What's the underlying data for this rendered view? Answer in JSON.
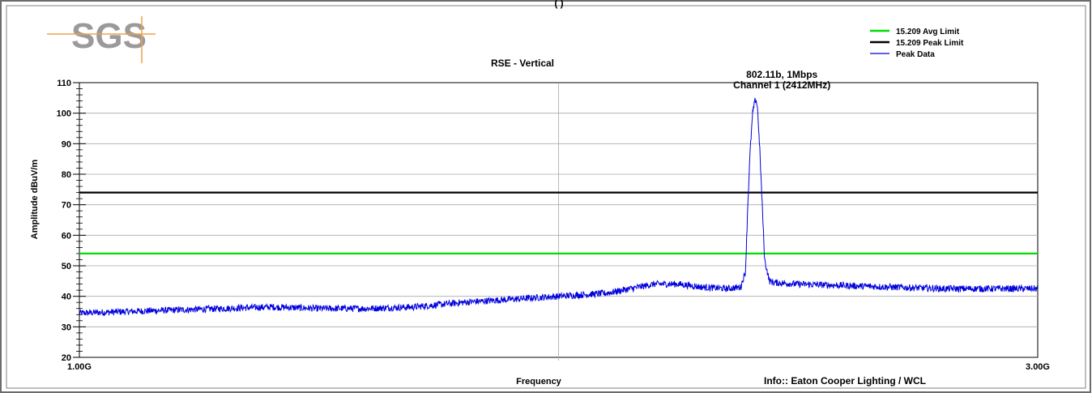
{
  "header_fragment": "(          )",
  "logo_text": "SGS",
  "footer": {
    "info": "Info:: Eaton Cooper Lighting / WCL"
  },
  "colors": {
    "avg_limit": "#00dd00",
    "peak_limit": "#000000",
    "peak_data": "#0000dd",
    "logo_text": "#9a9a9a",
    "logo_line": "#f0a050"
  },
  "chart_data": {
    "type": "line",
    "title": "RSE - Vertical",
    "xlabel": "Frequency",
    "ylabel": "Amplitude dBuV/m",
    "x_unit": "GHz",
    "xlim": [
      1.0,
      3.0
    ],
    "ylim": [
      20,
      110
    ],
    "y_ticks": [
      20,
      30,
      40,
      50,
      60,
      70,
      80,
      90,
      100,
      110
    ],
    "x_tick_labels": [
      "1.00G",
      "3.00G"
    ],
    "grid": true,
    "legend_position": "top-right",
    "annotation": {
      "lines": [
        "802.11b, 1Mbps",
        "Channel 1 (2412MHz)"
      ],
      "x": 2.412
    },
    "series": [
      {
        "name": "15.209 Avg Limit",
        "kind": "limit",
        "x": [
          1.0,
          3.0
        ],
        "values": [
          54,
          54
        ]
      },
      {
        "name": "15.209 Peak Limit",
        "kind": "limit",
        "x": [
          1.0,
          3.0
        ],
        "values": [
          74,
          74
        ]
      },
      {
        "name": "Peak Data",
        "kind": "trace",
        "x": [
          1.0,
          1.1,
          1.2,
          1.3,
          1.4,
          1.5,
          1.6,
          1.7,
          1.8,
          1.9,
          2.0,
          2.1,
          2.15,
          2.2,
          2.25,
          2.3,
          2.35,
          2.38,
          2.39,
          2.395,
          2.4,
          2.405,
          2.41,
          2.412,
          2.415,
          2.42,
          2.425,
          2.43,
          2.44,
          2.45,
          2.5,
          2.6,
          2.7,
          2.8,
          2.9,
          3.0
        ],
        "values": [
          34.5,
          35,
          35.5,
          36,
          36.5,
          36,
          36,
          36.5,
          38,
          39,
          40,
          41,
          42.5,
          44,
          44,
          43,
          42.5,
          43,
          48,
          70,
          88,
          100,
          104,
          104.5,
          102,
          88,
          70,
          52,
          45,
          44.5,
          44,
          43.5,
          43,
          42.5,
          42.5,
          42.5
        ]
      }
    ]
  }
}
